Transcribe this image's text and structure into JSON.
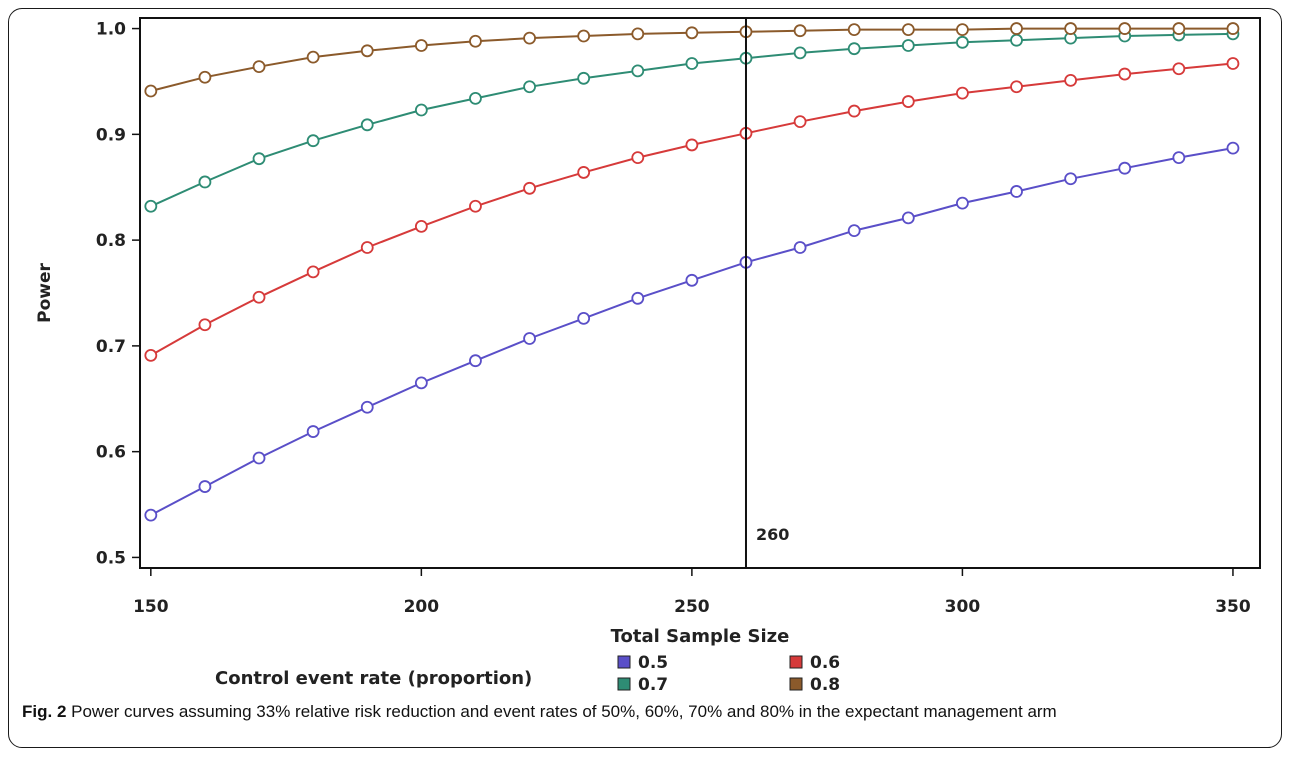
{
  "chart_data": {
    "type": "line",
    "xlabel": "Total Sample Size",
    "ylabel": "Power",
    "xlim": [
      148,
      355
    ],
    "ylim": [
      0.49,
      1.01
    ],
    "xticks": [
      150,
      200,
      250,
      300,
      350
    ],
    "yticks": [
      0.5,
      0.6,
      0.7,
      0.8,
      0.9,
      1.0
    ],
    "ytick_labels": [
      "0.5",
      "0.6",
      "0.7",
      "0.8",
      "0.9",
      "1.0"
    ],
    "x": [
      150,
      160,
      170,
      180,
      190,
      200,
      210,
      220,
      230,
      240,
      250,
      260,
      270,
      280,
      290,
      300,
      310,
      320,
      330,
      340,
      350
    ],
    "series": [
      {
        "name": "0.5",
        "color": "#5a4fc8",
        "values": [
          0.54,
          0.567,
          0.594,
          0.619,
          0.642,
          0.665,
          0.686,
          0.707,
          0.726,
          0.745,
          0.762,
          0.779,
          0.793,
          0.809,
          0.821,
          0.835,
          0.846,
          0.858,
          0.868,
          0.878,
          0.887
        ]
      },
      {
        "name": "0.6",
        "color": "#d63a3a",
        "values": [
          0.691,
          0.72,
          0.746,
          0.77,
          0.793,
          0.813,
          0.832,
          0.849,
          0.864,
          0.878,
          0.89,
          0.901,
          0.912,
          0.922,
          0.931,
          0.939,
          0.945,
          0.951,
          0.957,
          0.962,
          0.967
        ]
      },
      {
        "name": "0.7",
        "color": "#2e8c74",
        "values": [
          0.832,
          0.855,
          0.877,
          0.894,
          0.909,
          0.923,
          0.934,
          0.945,
          0.953,
          0.96,
          0.967,
          0.972,
          0.977,
          0.981,
          0.984,
          0.987,
          0.989,
          0.991,
          0.993,
          0.994,
          0.995
        ]
      },
      {
        "name": "0.8",
        "color": "#8b5a2b",
        "values": [
          0.941,
          0.954,
          0.964,
          0.973,
          0.979,
          0.984,
          0.988,
          0.991,
          0.993,
          0.995,
          0.996,
          0.997,
          0.998,
          0.999,
          0.999,
          0.999,
          1.0,
          1.0,
          1.0,
          1.0,
          1.0
        ]
      }
    ],
    "reference_line": {
      "x": 260,
      "label": "260"
    },
    "legend": {
      "title": "Control event rate (proportion)",
      "placement": "bottom"
    },
    "grid": false
  },
  "caption": {
    "label": "Fig. 2",
    "text": " Power curves assuming 33% relative risk reduction and event rates of 50%, 60%, 70% and 80% in the expectant management arm"
  }
}
